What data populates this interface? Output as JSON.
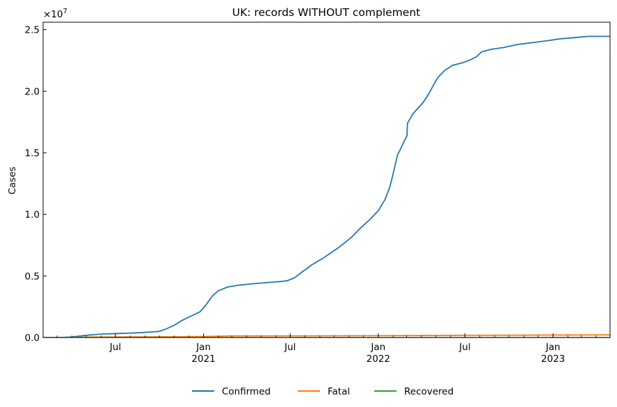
{
  "chart_data": {
    "type": "line",
    "title": "UK: records WITHOUT complement",
    "xlabel": "",
    "ylabel": "Cases",
    "y_scale_label": "×10",
    "y_scale_exponent": "7",
    "xlim": [
      "2020-02-01",
      "2023-04-30"
    ],
    "ylim": [
      0,
      25600000
    ],
    "y_ticks": [
      {
        "value": 0,
        "label": "0.0"
      },
      {
        "value": 5000000,
        "label": "0.5"
      },
      {
        "value": 10000000,
        "label": "1.0"
      },
      {
        "value": 15000000,
        "label": "1.5"
      },
      {
        "value": 20000000,
        "label": "2.0"
      },
      {
        "value": 25000000,
        "label": "2.5"
      }
    ],
    "x_ticks": [
      {
        "date": "2020-07-01",
        "label": "Jul",
        "year": ""
      },
      {
        "date": "2021-01-01",
        "label": "Jan",
        "year": "2021"
      },
      {
        "date": "2021-07-01",
        "label": "Jul",
        "year": ""
      },
      {
        "date": "2022-01-01",
        "label": "Jan",
        "year": "2022"
      },
      {
        "date": "2022-07-01",
        "label": "Jul",
        "year": ""
      },
      {
        "date": "2023-01-01",
        "label": "Jan",
        "year": "2023"
      }
    ],
    "grid": false,
    "legend_position": "bottom-center",
    "series": [
      {
        "name": "Confirmed",
        "color": "#1f77b4",
        "points": [
          [
            "2020-02-01",
            0
          ],
          [
            "2020-03-15",
            10000
          ],
          [
            "2020-04-01",
            50000
          ],
          [
            "2020-05-01",
            180000
          ],
          [
            "2020-06-01",
            280000
          ],
          [
            "2020-07-01",
            320000
          ],
          [
            "2020-08-01",
            360000
          ],
          [
            "2020-09-01",
            420000
          ],
          [
            "2020-10-01",
            500000
          ],
          [
            "2020-10-15",
            700000
          ],
          [
            "2020-11-01",
            1000000
          ],
          [
            "2020-11-15",
            1350000
          ],
          [
            "2020-12-01",
            1650000
          ],
          [
            "2020-12-25",
            2100000
          ],
          [
            "2021-01-05",
            2600000
          ],
          [
            "2021-01-20",
            3400000
          ],
          [
            "2021-02-01",
            3800000
          ],
          [
            "2021-02-20",
            4100000
          ],
          [
            "2021-03-15",
            4250000
          ],
          [
            "2021-04-15",
            4370000
          ],
          [
            "2021-05-15",
            4470000
          ],
          [
            "2021-06-15",
            4560000
          ],
          [
            "2021-06-25",
            4620000
          ],
          [
            "2021-07-10",
            4850000
          ],
          [
            "2021-07-25",
            5300000
          ],
          [
            "2021-08-15",
            5900000
          ],
          [
            "2021-09-10",
            6500000
          ],
          [
            "2021-10-10",
            7300000
          ],
          [
            "2021-11-05",
            8100000
          ],
          [
            "2021-11-25",
            8900000
          ],
          [
            "2021-12-15",
            9600000
          ],
          [
            "2022-01-01",
            10300000
          ],
          [
            "2022-01-15",
            11200000
          ],
          [
            "2022-01-25",
            12200000
          ],
          [
            "2022-02-01",
            13300000
          ],
          [
            "2022-02-10",
            14800000
          ],
          [
            "2022-02-20",
            15600000
          ],
          [
            "2022-03-02",
            16400000
          ],
          [
            "2022-03-03",
            17400000
          ],
          [
            "2022-03-15",
            18200000
          ],
          [
            "2022-04-05",
            19100000
          ],
          [
            "2022-04-15",
            19700000
          ],
          [
            "2022-04-25",
            20400000
          ],
          [
            "2022-05-05",
            21100000
          ],
          [
            "2022-05-20",
            21700000
          ],
          [
            "2022-06-05",
            22100000
          ],
          [
            "2022-06-25",
            22300000
          ],
          [
            "2022-07-10",
            22500000
          ],
          [
            "2022-07-25",
            22800000
          ],
          [
            "2022-08-05",
            23200000
          ],
          [
            "2022-08-25",
            23400000
          ],
          [
            "2022-09-20",
            23550000
          ],
          [
            "2022-10-20",
            23800000
          ],
          [
            "2022-11-20",
            23950000
          ],
          [
            "2022-12-20",
            24100000
          ],
          [
            "2023-01-15",
            24250000
          ],
          [
            "2023-02-15",
            24350000
          ],
          [
            "2023-03-15",
            24450000
          ],
          [
            "2023-04-30",
            24450000
          ]
        ]
      },
      {
        "name": "Fatal",
        "color": "#ff7f0e",
        "points": [
          [
            "2020-02-01",
            0
          ],
          [
            "2020-04-01",
            10000
          ],
          [
            "2020-05-15",
            40000
          ],
          [
            "2020-07-01",
            50000
          ],
          [
            "2020-11-01",
            60000
          ],
          [
            "2021-01-01",
            80000
          ],
          [
            "2021-03-01",
            130000
          ],
          [
            "2021-09-01",
            140000
          ],
          [
            "2022-01-01",
            155000
          ],
          [
            "2022-07-01",
            180000
          ],
          [
            "2023-01-01",
            200000
          ],
          [
            "2023-04-30",
            215000
          ]
        ]
      },
      {
        "name": "Recovered",
        "color": "#2ca02c",
        "points": [
          [
            "2020-02-01",
            0
          ],
          [
            "2023-04-30",
            0
          ]
        ]
      }
    ]
  }
}
